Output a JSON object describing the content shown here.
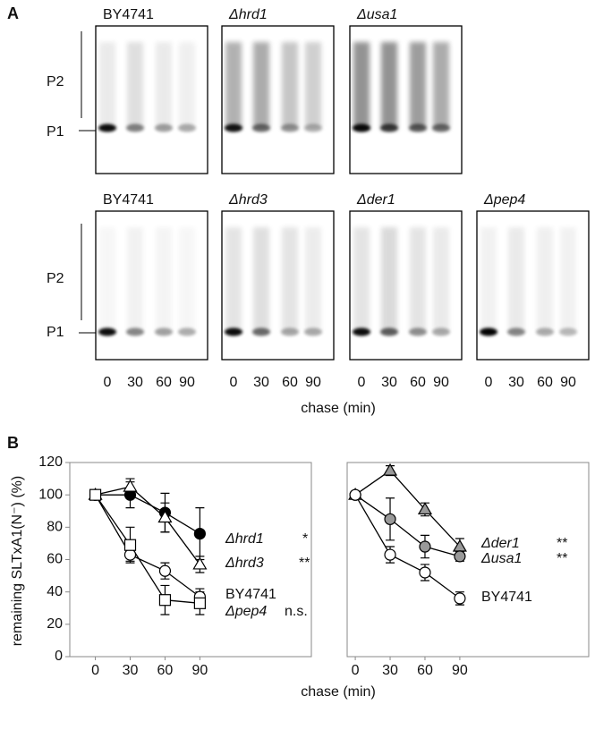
{
  "panel_a": {
    "label": "A",
    "top_row": [
      "BY4741",
      "Δhrd1",
      "Δusa1"
    ],
    "bottom_row": [
      "BY4741",
      "Δhrd3",
      "Δder1",
      "Δpep4"
    ],
    "bands": [
      "P2",
      "P1"
    ],
    "lanes": [
      "0",
      "30",
      "60",
      "90"
    ],
    "xlabel": "chase (min)"
  },
  "panel_b": {
    "label": "B"
  },
  "chart_data": [
    {
      "type": "line",
      "ylabel": "remaining SLTxA1(N⁻) (%)",
      "xlabel": "chase (min)",
      "x": [
        0,
        30,
        60,
        90
      ],
      "xlim": [
        -22,
        186
      ],
      "xticks": [
        0,
        30,
        60,
        90
      ],
      "ylim": [
        0,
        120
      ],
      "yticks": [
        0,
        20,
        40,
        60,
        80,
        100,
        120
      ],
      "series": [
        {
          "name": "Δhrd1",
          "significance": "*",
          "marker": "circle",
          "color": "#000000",
          "fill": "#000000",
          "values": [
            100,
            100,
            89,
            76
          ],
          "errors": [
            0,
            8,
            12,
            16
          ]
        },
        {
          "name": "Δhrd3",
          "significance": "**",
          "marker": "triangle",
          "color": "#000000",
          "fill": "#ffffff",
          "values": [
            100,
            105,
            86,
            57
          ],
          "errors": [
            0,
            5,
            9,
            5
          ]
        },
        {
          "name": "BY4741",
          "marker": "circle",
          "color": "#000000",
          "fill": "#ffffff",
          "values": [
            100,
            63,
            53,
            37
          ],
          "errors": [
            0,
            4,
            5,
            5
          ]
        },
        {
          "name": "Δpep4",
          "significance": "n.s.",
          "marker": "square",
          "color": "#000000",
          "fill": "#ffffff",
          "values": [
            100,
            69,
            35,
            33
          ],
          "errors": [
            0,
            11,
            9,
            7
          ]
        }
      ]
    },
    {
      "type": "line",
      "x": [
        0,
        30,
        60,
        90
      ],
      "xlim": [
        -7,
        201
      ],
      "xticks": [
        0,
        30,
        60,
        90
      ],
      "ylim": [
        0,
        120
      ],
      "series": [
        {
          "name": "Δder1",
          "significance": "**",
          "marker": "triangle",
          "color": "#000000",
          "fill": "#999999",
          "values": [
            100,
            115,
            91,
            68
          ],
          "errors": [
            0,
            3,
            4,
            5
          ]
        },
        {
          "name": "Δusa1",
          "significance": "**",
          "marker": "circle",
          "color": "#000000",
          "fill": "#999999",
          "values": [
            100,
            85,
            68,
            62
          ],
          "errors": [
            0,
            13,
            7,
            3
          ]
        },
        {
          "name": "BY4741",
          "marker": "circle",
          "color": "#000000",
          "fill": "#ffffff",
          "values": [
            100,
            63,
            52,
            36
          ],
          "errors": [
            0,
            5,
            5,
            4
          ]
        }
      ]
    }
  ]
}
